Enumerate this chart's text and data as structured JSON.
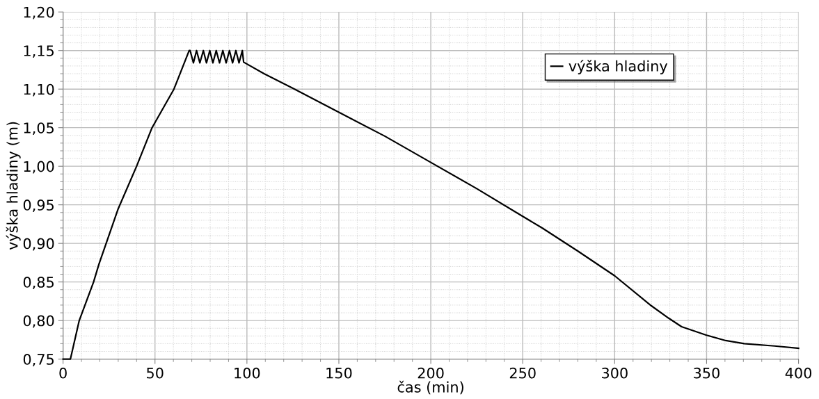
{
  "chart_data": {
    "type": "line",
    "xlabel": "čas (min)",
    "ylabel": "výška hladiny (m)",
    "xlim": [
      0,
      400
    ],
    "xticks": [
      0,
      50,
      100,
      150,
      200,
      250,
      300,
      350,
      400
    ],
    "ylim": [
      0.75,
      1.2
    ],
    "yticks": [
      {
        "value": 0.75,
        "label": "0,75"
      },
      {
        "value": 0.8,
        "label": "0,80"
      },
      {
        "value": 0.85,
        "label": "0,85"
      },
      {
        "value": 0.9,
        "label": "0,90"
      },
      {
        "value": 0.95,
        "label": "0,95"
      },
      {
        "value": 1.0,
        "label": "1,00"
      },
      {
        "value": 1.05,
        "label": "1,05"
      },
      {
        "value": 1.1,
        "label": "1,10"
      },
      {
        "value": 1.15,
        "label": "1,15"
      },
      {
        "value": 1.2,
        "label": "1,20"
      }
    ],
    "grid": true,
    "legend": "top right",
    "marker": "none",
    "line_style": "solid",
    "series": [
      {
        "name": "výška hladiny",
        "color": "#000000",
        "x": [
          0,
          4.0,
          8.8,
          16.6,
          19.5,
          30,
          40,
          48.4,
          60.3,
          68.6,
          69.1,
          70.9,
          72.6,
          74.4,
          76.3,
          78.0,
          79.8,
          81.5,
          83.3,
          85.1,
          86.9,
          88.7,
          90.5,
          92.2,
          94.0,
          95.7,
          97.5,
          98.2,
          109.3,
          125,
          150,
          175,
          200,
          225,
          250,
          260.6,
          280,
          300,
          320,
          329.4,
          336.4,
          350,
          360.4,
          370.5,
          387,
          400
        ],
        "values": [
          0.75,
          0.75,
          0.8,
          0.85,
          0.873,
          0.945,
          1.0,
          1.05,
          1.1,
          1.15,
          1.15,
          1.134,
          1.15,
          1.134,
          1.15,
          1.134,
          1.15,
          1.134,
          1.15,
          1.134,
          1.15,
          1.134,
          1.15,
          1.134,
          1.15,
          1.134,
          1.15,
          1.135,
          1.12,
          1.101,
          1.07,
          1.039,
          1.005,
          0.971,
          0.935,
          0.92,
          0.89,
          0.858,
          0.819,
          0.803,
          0.792,
          0.781,
          0.774,
          0.77,
          0.767,
          0.764
        ]
      }
    ]
  }
}
